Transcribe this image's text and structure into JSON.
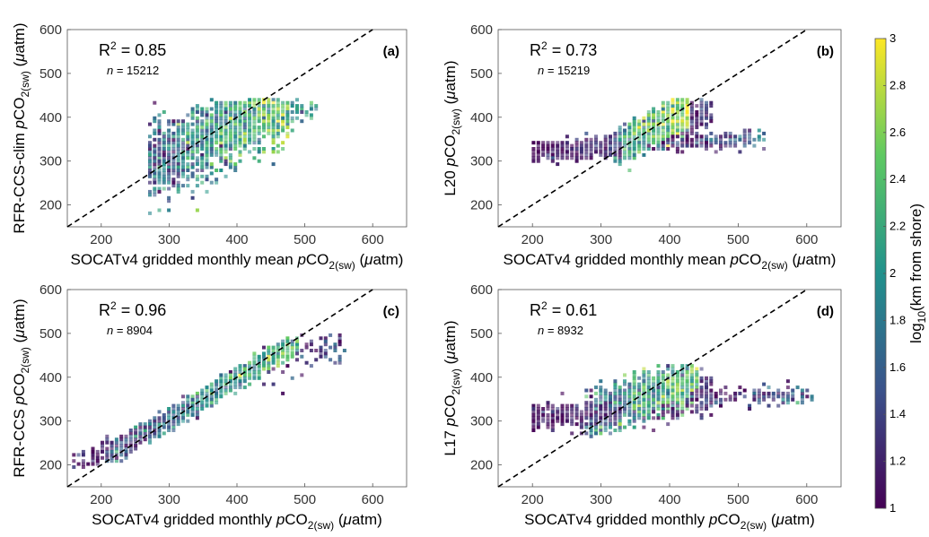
{
  "colormap": [
    "#440154",
    "#3b528b",
    "#21918c",
    "#5ec962",
    "#fde725"
  ],
  "colorbar": {
    "label_html": "log<tspan font-size=\"12\" dy=\"5\">10</tspan><tspan dy=\"-5\">(km from shore)</tspan>",
    "range": [
      1,
      3
    ],
    "ticks": [
      "1",
      "1.2",
      "1.4",
      "1.6",
      "1.8",
      "2",
      "2.2",
      "2.4",
      "2.6",
      "2.8",
      "3"
    ]
  },
  "chart_data": [
    {
      "id": "a",
      "type": "heatmap",
      "panel_label": "(a)",
      "r2_value": "0.85",
      "n_value": "15212",
      "xlabel_html": "SOCATv4 gridded monthly mean <tspan font-style=\"italic\">p</tspan>CO<tspan font-size=\"12\" dy=\"5\">2(sw)</tspan><tspan dy=\"-5\"> (</tspan><tspan font-style=\"italic\">μ</tspan>atm)",
      "ylabel_html": "RFR-CCS-clim <tspan font-style=\"italic\">p</tspan>CO<tspan font-size=\"12\" dy=\"5\">2(sw)</tspan><tspan dy=\"-5\"> (</tspan><tspan font-style=\"italic\">μ</tspan>atm)",
      "xlim": [
        150,
        650
      ],
      "ylim": [
        150,
        600
      ],
      "xticks": [
        200,
        300,
        400,
        500,
        600
      ],
      "yticks": [
        200,
        300,
        400,
        500,
        600
      ],
      "one_to_one_line": true,
      "clusters": [
        {
          "x1": 270,
          "x2": 480,
          "xc": 270,
          "yc": 290,
          "slope": 0.72,
          "spread": 40,
          "ca": 1.6,
          "cb": 2.5,
          "cnoise": 0.35,
          "ymax": 440,
          "n": 1500
        },
        {
          "x1": 340,
          "x2": 470,
          "xc": 340,
          "yc": 360,
          "slope": 0.7,
          "spread": 22,
          "ca": 2.2,
          "cb": 2.7,
          "cnoise": 0.2,
          "ymax": 440,
          "n": 450
        },
        {
          "x1": 270,
          "x2": 330,
          "xc": 270,
          "yc": 300,
          "slope": 0.4,
          "spread": 20,
          "ca": 1.4,
          "cb": 1.6,
          "cnoise": 0.2,
          "ymax": 440,
          "n": 200
        },
        {
          "x1": 440,
          "x2": 520,
          "xc": 440,
          "yc": 410,
          "slope": 0.2,
          "spread": 15,
          "ca": 1.9,
          "cb": 2.2,
          "cnoise": 0.3,
          "ymax": 440,
          "n": 60
        }
      ]
    },
    {
      "id": "b",
      "type": "heatmap",
      "panel_label": "(b)",
      "r2_value": "0.73",
      "n_value": "15219",
      "xlabel_html": "SOCATv4 gridded monthly mean <tspan font-style=\"italic\">p</tspan>CO<tspan font-size=\"12\" dy=\"5\">2(sw)</tspan><tspan dy=\"-5\"> (</tspan><tspan font-style=\"italic\">μ</tspan>atm)",
      "ylabel_html": "L20 <tspan font-style=\"italic\">p</tspan>CO<tspan font-size=\"12\" dy=\"5\">2(sw)</tspan><tspan dy=\"-5\"> (</tspan><tspan font-style=\"italic\">μ</tspan>atm)",
      "xlim": [
        150,
        650
      ],
      "ylim": [
        150,
        600
      ],
      "xticks": [
        200,
        300,
        400,
        500,
        600
      ],
      "yticks": [
        200,
        300,
        400,
        500,
        600
      ],
      "one_to_one_line": true,
      "clusters": [
        {
          "x1": 200,
          "x2": 330,
          "xc": 200,
          "yc": 318,
          "slope": 0.12,
          "spread": 10,
          "ca": 1.0,
          "cb": 1.3,
          "cnoise": 0.15,
          "ymax": 440,
          "n": 550
        },
        {
          "x1": 320,
          "x2": 430,
          "xc": 320,
          "yc": 325,
          "slope": 0.9,
          "spread": 18,
          "ca": 1.9,
          "cb": 2.8,
          "cnoise": 0.3,
          "ymax": 440,
          "n": 1200
        },
        {
          "x1": 400,
          "x2": 460,
          "xc": 400,
          "yc": 390,
          "slope": 0.6,
          "spread": 25,
          "ca": 1.0,
          "cb": 1.3,
          "cnoise": 0.2,
          "ymax": 440,
          "n": 250
        },
        {
          "x1": 350,
          "x2": 540,
          "xc": 350,
          "yc": 340,
          "slope": 0.05,
          "spread": 10,
          "ca": 1.0,
          "cb": 1.5,
          "cnoise": 0.3,
          "ymax": 440,
          "n": 220
        }
      ]
    },
    {
      "id": "c",
      "type": "heatmap",
      "panel_label": "(c)",
      "r2_value": "0.96",
      "n_value": "8904",
      "xlabel_html": "SOCATv4 gridded monthly <tspan font-style=\"italic\">p</tspan>CO<tspan font-size=\"12\" dy=\"5\">2(sw)</tspan><tspan dy=\"-5\"> (</tspan><tspan font-style=\"italic\">μ</tspan>atm)",
      "ylabel_html": "RFR-CCS <tspan font-style=\"italic\">p</tspan>CO<tspan font-size=\"12\" dy=\"5\">2(sw)</tspan><tspan dy=\"-5\"> (</tspan><tspan font-style=\"italic\">μ</tspan>atm)",
      "xlim": [
        150,
        650
      ],
      "ylim": [
        150,
        600
      ],
      "xticks": [
        200,
        300,
        400,
        500,
        600
      ],
      "yticks": [
        200,
        300,
        400,
        500,
        600
      ],
      "one_to_one_line": true,
      "clusters": [
        {
          "x1": 210,
          "x2": 490,
          "xc": 210,
          "yc": 222,
          "slope": 0.92,
          "spread": 10,
          "ca": 1.4,
          "cb": 2.3,
          "cnoise": 0.35,
          "ymax": 490,
          "n": 1800
        },
        {
          "x1": 160,
          "x2": 230,
          "xc": 160,
          "yc": 200,
          "slope": 0.7,
          "spread": 14,
          "ca": 1.0,
          "cb": 1.3,
          "cnoise": 0.2,
          "ymax": 490,
          "n": 60
        },
        {
          "x1": 440,
          "x2": 560,
          "xc": 440,
          "yc": 430,
          "slope": 0.5,
          "spread": 25,
          "ca": 1.0,
          "cb": 1.4,
          "cnoise": 0.25,
          "ymax": 500,
          "n": 90
        }
      ]
    },
    {
      "id": "d",
      "type": "heatmap",
      "panel_label": "(d)",
      "r2_value": "0.61",
      "n_value": "8932",
      "xlabel_html": "SOCATv4 gridded monthly <tspan font-style=\"italic\">p</tspan>CO<tspan font-size=\"12\" dy=\"5\">2(sw)</tspan><tspan dy=\"-5\"> (</tspan><tspan font-style=\"italic\">μ</tspan>atm)",
      "ylabel_html": "L17 <tspan font-style=\"italic\">p</tspan>CO<tspan font-size=\"12\" dy=\"5\">2(sw)</tspan><tspan dy=\"-5\"> (</tspan><tspan font-style=\"italic\">μ</tspan>atm)",
      "xlim": [
        150,
        650
      ],
      "ylim": [
        150,
        600
      ],
      "xticks": [
        200,
        300,
        400,
        500,
        600
      ],
      "yticks": [
        200,
        300,
        400,
        500,
        600
      ],
      "one_to_one_line": true,
      "clusters": [
        {
          "x1": 200,
          "x2": 330,
          "xc": 200,
          "yc": 310,
          "slope": 0.08,
          "spread": 14,
          "ca": 1.0,
          "cb": 1.3,
          "cnoise": 0.15,
          "ymax": 430,
          "n": 350
        },
        {
          "x1": 280,
          "x2": 440,
          "xc": 280,
          "yc": 310,
          "slope": 0.55,
          "spread": 22,
          "ca": 1.7,
          "cb": 2.4,
          "cnoise": 0.35,
          "ymax": 430,
          "n": 1300
        },
        {
          "x1": 360,
          "x2": 460,
          "xc": 360,
          "yc": 330,
          "slope": 0.4,
          "spread": 22,
          "ca": 1.0,
          "cb": 1.3,
          "cnoise": 0.15,
          "ymax": 430,
          "n": 300
        },
        {
          "x1": 420,
          "x2": 610,
          "xc": 420,
          "yc": 355,
          "slope": 0.02,
          "spread": 12,
          "ca": 1.0,
          "cb": 1.5,
          "cnoise": 0.3,
          "ymax": 430,
          "n": 160
        }
      ]
    }
  ]
}
